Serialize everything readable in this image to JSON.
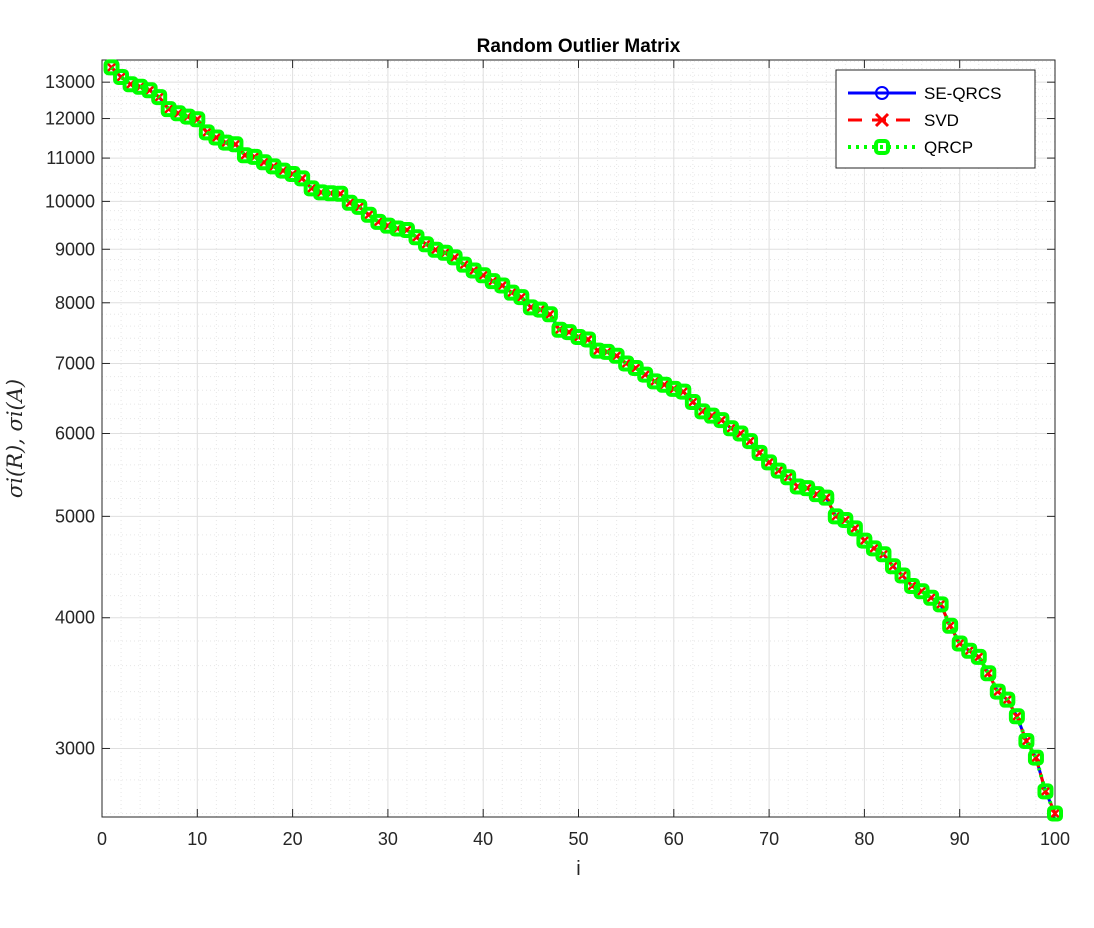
{
  "chart_data": {
    "type": "line",
    "title": "Random Outlier Matrix",
    "xlabel": "i",
    "ylabel": "σ_i(R), σ_i(A)",
    "ylabel_display": "σi(R), σi(A)",
    "y_scale": "log",
    "xlim": [
      0,
      100
    ],
    "ylim": [
      2580,
      13650
    ],
    "x_ticks": [
      0,
      10,
      20,
      30,
      40,
      50,
      60,
      70,
      80,
      90,
      100
    ],
    "x_tick_labels": [
      "0",
      "10",
      "20",
      "30",
      "40",
      "50",
      "60",
      "70",
      "80",
      "90",
      "100"
    ],
    "y_ticks": [
      3000,
      4000,
      5000,
      6000,
      7000,
      8000,
      9000,
      10000,
      11000,
      12000,
      13000
    ],
    "y_tick_labels": [
      "3000",
      "4000",
      "5000",
      "6000",
      "7000",
      "8000",
      "9000",
      "10000",
      "11000",
      "12000",
      "13000"
    ],
    "grid": "on",
    "minor_grid": "on",
    "legend_position": "top-right",
    "x": [
      1,
      2,
      3,
      4,
      5,
      6,
      7,
      8,
      9,
      10,
      11,
      12,
      13,
      14,
      15,
      16,
      17,
      18,
      19,
      20,
      21,
      22,
      23,
      24,
      25,
      26,
      27,
      28,
      29,
      30,
      31,
      32,
      33,
      34,
      35,
      36,
      37,
      38,
      39,
      40,
      41,
      42,
      43,
      44,
      45,
      46,
      47,
      48,
      49,
      50,
      51,
      52,
      53,
      54,
      55,
      56,
      57,
      58,
      59,
      60,
      61,
      62,
      63,
      64,
      65,
      66,
      67,
      68,
      69,
      70,
      71,
      72,
      73,
      74,
      75,
      76,
      77,
      78,
      79,
      80,
      81,
      82,
      83,
      84,
      85,
      86,
      87,
      88,
      89,
      90,
      91,
      92,
      93,
      94,
      95,
      96,
      97,
      98,
      99,
      100
    ],
    "y_singular_values": [
      13430,
      13150,
      12940,
      12870,
      12770,
      12580,
      12250,
      12140,
      12050,
      11980,
      11640,
      11510,
      11380,
      11340,
      11070,
      11030,
      10900,
      10800,
      10700,
      10620,
      10520,
      10290,
      10200,
      10180,
      10170,
      9970,
      9880,
      9710,
      9560,
      9480,
      9420,
      9390,
      9240,
      9100,
      8990,
      8930,
      8840,
      8700,
      8590,
      8500,
      8390,
      8310,
      8180,
      8100,
      7920,
      7880,
      7800,
      7540,
      7500,
      7420,
      7380,
      7200,
      7180,
      7120,
      7000,
      6930,
      6830,
      6730,
      6680,
      6620,
      6580,
      6430,
      6300,
      6240,
      6180,
      6070,
      6000,
      5900,
      5750,
      5630,
      5530,
      5450,
      5340,
      5320,
      5250,
      5210,
      5000,
      4960,
      4870,
      4740,
      4660,
      4600,
      4480,
      4390,
      4290,
      4240,
      4180,
      4120,
      3930,
      3780,
      3720,
      3670,
      3540,
      3400,
      3340,
      3220,
      3050,
      2940,
      2730,
      2600
    ],
    "series": [
      {
        "name": "SE-QRCS",
        "color": "#0000ff",
        "line_style": "solid",
        "marker": "circle"
      },
      {
        "name": "SVD",
        "color": "#ff0000",
        "line_style": "dashed",
        "marker": "x"
      },
      {
        "name": "QRCP",
        "color": "#00ff00",
        "line_style": "dotted",
        "marker": "square"
      }
    ]
  }
}
